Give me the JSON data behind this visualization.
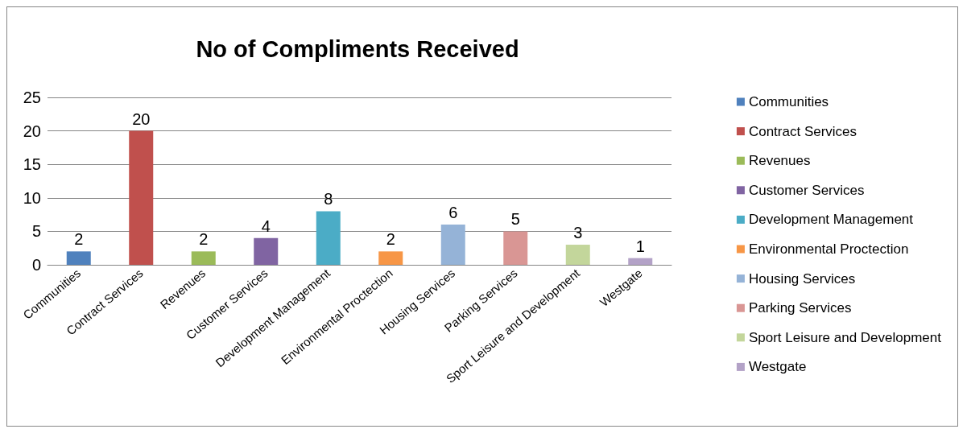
{
  "chart_data": {
    "type": "bar",
    "title": "No of Compliments Received",
    "categories": [
      "Communities",
      "Contract Services",
      "Revenues",
      "Customer Services",
      "Development Management",
      "Environmental Proctection",
      "Housing Services",
      "Parking Services",
      "Sport Leisure and Development",
      "Westgate"
    ],
    "series": [
      {
        "name": "Communities",
        "color": "#4f81bd",
        "values": [
          2,
          null,
          null,
          null,
          null,
          null,
          null,
          null,
          null,
          null
        ]
      },
      {
        "name": "Contract Services",
        "color": "#c0504d",
        "values": [
          null,
          20,
          null,
          null,
          null,
          null,
          null,
          null,
          null,
          null
        ]
      },
      {
        "name": "Revenues",
        "color": "#9bbb59",
        "values": [
          null,
          null,
          2,
          null,
          null,
          null,
          null,
          null,
          null,
          null
        ]
      },
      {
        "name": "Customer Services",
        "color": "#8064a2",
        "values": [
          null,
          null,
          null,
          4,
          null,
          null,
          null,
          null,
          null,
          null
        ]
      },
      {
        "name": "Development Management",
        "color": "#4bacc6",
        "values": [
          null,
          null,
          null,
          null,
          8,
          null,
          null,
          null,
          null,
          null
        ]
      },
      {
        "name": "Environmental Proctection",
        "color": "#f79646",
        "values": [
          null,
          null,
          null,
          null,
          null,
          2,
          null,
          null,
          null,
          null
        ]
      },
      {
        "name": "Housing Services",
        "color": "#95b3d7",
        "values": [
          null,
          null,
          null,
          null,
          null,
          null,
          6,
          null,
          null,
          null
        ]
      },
      {
        "name": "Parking Services",
        "color": "#d99694",
        "values": [
          null,
          null,
          null,
          null,
          null,
          null,
          null,
          5,
          null,
          null
        ]
      },
      {
        "name": "Sport Leisure and Development",
        "color": "#c3d69b",
        "values": [
          null,
          null,
          null,
          null,
          null,
          null,
          null,
          null,
          3,
          null
        ]
      },
      {
        "name": "Westgate",
        "color": "#b3a2c7",
        "values": [
          null,
          null,
          null,
          null,
          null,
          null,
          null,
          null,
          null,
          1
        ]
      }
    ],
    "ylim": [
      0,
      25
    ],
    "yticks": [
      0,
      5,
      10,
      15,
      20,
      25
    ],
    "grid": "y",
    "legend": "right",
    "data_labels": true
  }
}
